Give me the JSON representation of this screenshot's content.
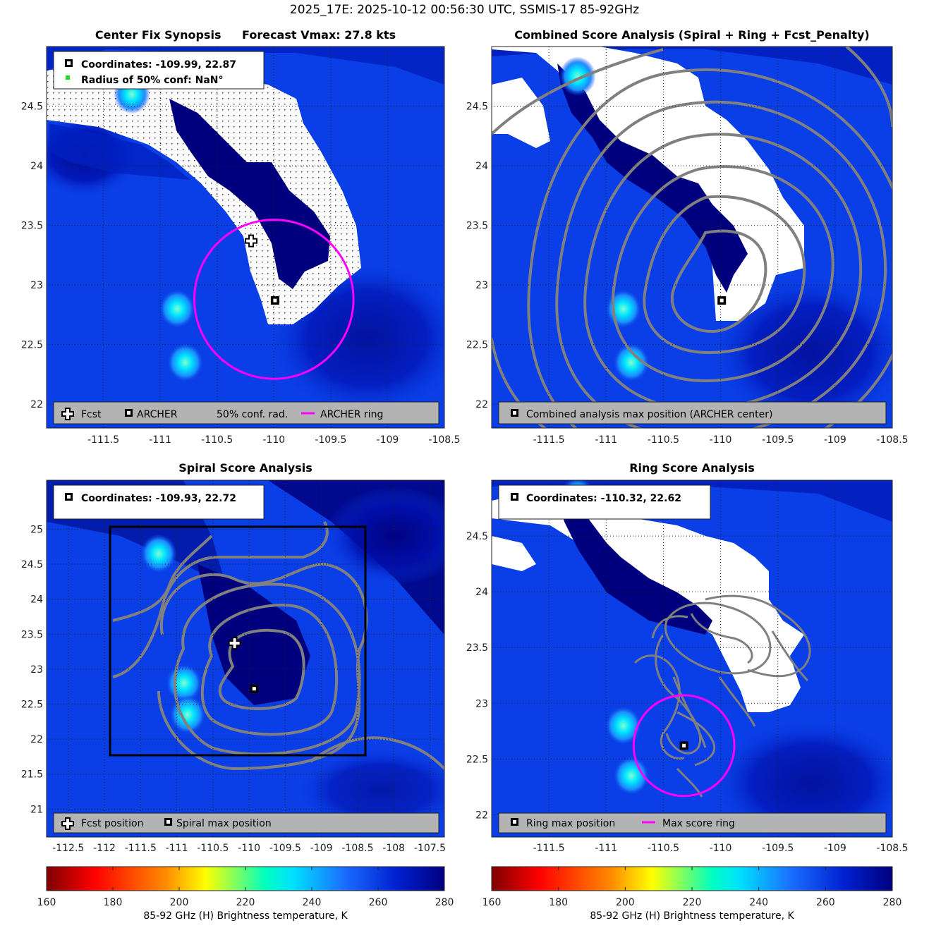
{
  "figure_title": "2025_17E: 2025-10-12 00:56:30 UTC, SSMIS-17 85-92GHz",
  "panels": {
    "synopsis": {
      "title_left": "Center Fix Synopsis",
      "title_right": "Forecast Vmax: 27.8 kts",
      "info_coords": "Coordinates: -109.99, 22.87",
      "info_radius": "Radius of 50% conf: NaN°",
      "legend": [
        "Fcst",
        "ARCHER",
        "50% conf. rad.",
        "ARCHER ring"
      ]
    },
    "combined": {
      "title": "Combined Score Analysis (Spiral + Ring + Fcst_Penalty)",
      "legend": [
        "Combined analysis max position (ARCHER center)"
      ]
    },
    "spiral": {
      "title": "Spiral Score Analysis",
      "info_coords": "Coordinates: -109.93, 22.72",
      "legend": [
        "Fcst position",
        "Spiral max position"
      ]
    },
    "ring": {
      "title": "Ring Score Analysis",
      "info_coords": "Coordinates: -110.32, 22.62",
      "legend": [
        "Ring max position",
        "Max score ring"
      ]
    }
  },
  "colorbars": {
    "label": "85-92 GHz (H) Brightness temperature, K",
    "ticks": [
      "160",
      "180",
      "200",
      "220",
      "240",
      "260",
      "280"
    ]
  },
  "chart_data": [
    {
      "type": "heatmap",
      "name_printed": "Center Fix Synopsis",
      "xlim": [
        -112.0,
        -108.5
      ],
      "ylim": [
        21.8,
        25.0
      ],
      "x_ticks": [
        -111.5,
        -111,
        -110.5,
        -110,
        -109.5,
        -109,
        -108.5
      ],
      "y_ticks": [
        22,
        22.5,
        23,
        23.5,
        24,
        24.5
      ],
      "fcst_position": [
        -110.2,
        23.37
      ],
      "archer_center": [
        -109.99,
        22.87
      ],
      "archer_ring": {
        "center": [
          -110.0,
          22.88
        ],
        "radius_deg": 0.7
      },
      "warm_spots": [
        [
          -110.85,
          22.8
        ],
        [
          -110.78,
          22.35
        ],
        [
          -111.25,
          24.6
        ]
      ]
    },
    {
      "type": "heatmap",
      "name_printed": "Combined Score Analysis (Spiral + Ring + Fcst_Penalty)",
      "xlim": [
        -112.0,
        -108.5
      ],
      "ylim": [
        21.8,
        25.0
      ],
      "x_ticks": [
        -111.5,
        -111,
        -110.5,
        -110,
        -109.5,
        -109,
        -108.5
      ],
      "y_ticks": [
        22,
        22.5,
        23,
        23.5,
        24,
        24.5
      ],
      "max_position": [
        -109.99,
        22.87
      ],
      "warm_spots": [
        [
          -110.85,
          22.8
        ],
        [
          -110.78,
          22.35
        ],
        [
          -111.25,
          24.75
        ]
      ]
    },
    {
      "type": "heatmap",
      "name_printed": "Spiral Score Analysis",
      "xlim": [
        -112.8,
        -107.3
      ],
      "ylim": [
        20.6,
        25.7
      ],
      "x_ticks": [
        -112.5,
        -112,
        -111.5,
        -111,
        -110.5,
        -110,
        -109.5,
        -109,
        -108.5,
        -108,
        -107.5
      ],
      "y_ticks": [
        21,
        21.5,
        22,
        22.5,
        23,
        23.5,
        24,
        24.5,
        25
      ],
      "fcst_position": [
        -110.2,
        23.37
      ],
      "spiral_max": [
        -109.93,
        22.72
      ],
      "search_box": {
        "x": [
          -111.95,
          -108.45
        ],
        "y": [
          21.75,
          24.95
        ]
      },
      "warm_spots": [
        [
          -111.25,
          24.65
        ],
        [
          -110.9,
          22.8
        ],
        [
          -110.85,
          22.35
        ]
      ]
    },
    {
      "type": "heatmap",
      "name_printed": "Ring Score Analysis",
      "xlim": [
        -112.0,
        -108.5
      ],
      "ylim": [
        21.8,
        25.0
      ],
      "x_ticks": [
        -111.5,
        -111,
        -110.5,
        -110,
        -109.5,
        -109,
        -108.5
      ],
      "y_ticks": [
        22,
        22.5,
        23,
        23.5,
        24,
        24.5
      ],
      "ring_max": [
        -110.32,
        22.62
      ],
      "max_score_ring": {
        "center": [
          -110.32,
          22.62
        ],
        "radius_deg": 0.44
      },
      "warm_spots": [
        [
          -110.85,
          22.8
        ],
        [
          -110.78,
          22.35
        ],
        [
          -111.25,
          24.85
        ]
      ]
    }
  ],
  "colors": {
    "background_blue": "#0a3ee6",
    "dark_blue": "#00007f",
    "ring_magenta": "#ff00ff",
    "contour_gray": "#808080",
    "legend_gray": "#b3b3b3"
  }
}
